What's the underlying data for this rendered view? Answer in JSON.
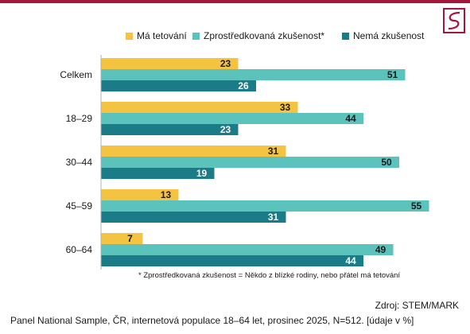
{
  "colors": {
    "ma_tetovani": "#f5c342",
    "zprostredkovana": "#5bc3bc",
    "nema": "#1b7b86",
    "brand": "#a4163b"
  },
  "logo": {
    "icon": "brand-logo-icon"
  },
  "chart_data": {
    "type": "bar",
    "orientation": "horizontal",
    "categories": [
      "Celkem",
      "18–29",
      "30–44",
      "45–59",
      "60–64"
    ],
    "series": [
      {
        "name": "Má tetování",
        "values": [
          23,
          33,
          31,
          13,
          7
        ]
      },
      {
        "name": "Zprostředkovaná zkušenost*",
        "values": [
          51,
          44,
          50,
          55,
          49
        ]
      },
      {
        "name": "Nemá zkušenost",
        "values": [
          26,
          23,
          19,
          31,
          44
        ]
      }
    ],
    "xlim": [
      0,
      60
    ],
    "grid": false,
    "legend_position": "top"
  },
  "footnote": "* Zprostředkovaná zkušenost = Někdo z blízké rodiny, nebo přátel má tetování",
  "source": "Zdroj: STEM/MARK",
  "sample": "Panel National Sample, ČR, internetová populace 18–64 let, prosinec 2025, N=512. [údaje v %]"
}
